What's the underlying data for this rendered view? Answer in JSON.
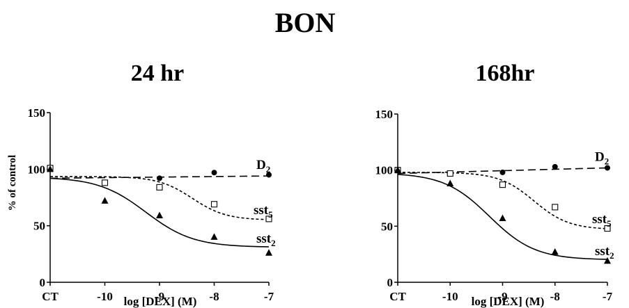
{
  "figure_title": "BON",
  "chart_data": [
    {
      "type": "line",
      "title": "24 hr",
      "xlabel": "log [DEX] (M)",
      "ylabel": "% of control",
      "categories": [
        "CT",
        "-10",
        "-9",
        "-8",
        "-7"
      ],
      "x_positions": [
        -11,
        -10,
        -9,
        -8,
        -7
      ],
      "ylim": [
        0,
        150
      ],
      "yticks": [
        0,
        50,
        100,
        150
      ],
      "series": [
        {
          "name": "D2",
          "label_main": "D",
          "label_sub": "2",
          "marker": "filled-circle",
          "line": "long-dash",
          "points": [
            [
              -11,
              100
            ],
            [
              -9,
              92
            ],
            [
              -8,
              97
            ],
            [
              -7,
              95
            ]
          ],
          "fit": {
            "model": "linear",
            "a": 0.5,
            "b": 97.5
          }
        },
        {
          "name": "sst5",
          "label_main": "sst",
          "label_sub": "5",
          "marker": "open-square",
          "line": "short-dash",
          "points": [
            [
              -11,
              101
            ],
            [
              -10,
              88
            ],
            [
              -9,
              84
            ],
            [
              -8,
              69
            ],
            [
              -7,
              56
            ]
          ],
          "fit": {
            "model": "sigmoid",
            "top": 93.5,
            "bottom": 55,
            "logec50": -8.4,
            "hill": 1.4
          }
        },
        {
          "name": "sst2",
          "label_main": "sst",
          "label_sub": "2",
          "marker": "filled-triangle",
          "line": "solid",
          "points": [
            [
              -11,
              100
            ],
            [
              -10,
              72
            ],
            [
              -9,
              59
            ],
            [
              -8,
              40
            ],
            [
              -7,
              26
            ]
          ],
          "fit": {
            "model": "sigmoid",
            "top": 93,
            "bottom": 31,
            "logec50": -9.25,
            "hill": 1.0
          }
        }
      ]
    },
    {
      "type": "line",
      "title": "168hr",
      "xlabel": "log [DEX] (M)",
      "ylabel": "",
      "categories": [
        "CT",
        "-10",
        "-9",
        "-8",
        "-7"
      ],
      "x_positions": [
        -11,
        -10,
        -9,
        -8,
        -7
      ],
      "ylim": [
        0,
        150
      ],
      "yticks": [
        0,
        50,
        100,
        150
      ],
      "series": [
        {
          "name": "D2",
          "label_main": "D",
          "label_sub": "2",
          "marker": "filled-circle",
          "line": "long-dash",
          "points": [
            [
              -11,
              100
            ],
            [
              -9,
              98
            ],
            [
              -8,
              103
            ],
            [
              -7,
              102
            ]
          ],
          "fit": {
            "model": "linear",
            "a": 1.25,
            "b": 110.75
          }
        },
        {
          "name": "sst5",
          "label_main": "sst",
          "label_sub": "5",
          "marker": "open-square",
          "line": "short-dash",
          "points": [
            [
              -11,
              100
            ],
            [
              -10,
              97
            ],
            [
              -9,
              87
            ],
            [
              -8,
              67
            ],
            [
              -7,
              48
            ]
          ],
          "fit": {
            "model": "sigmoid",
            "top": 98,
            "bottom": 47,
            "logec50": -8.4,
            "hill": 1.3
          }
        },
        {
          "name": "sst2",
          "label_main": "sst",
          "label_sub": "2",
          "marker": "filled-triangle",
          "line": "solid",
          "points": [
            [
              -11,
              100
            ],
            [
              -10,
              88
            ],
            [
              -9,
              57
            ],
            [
              -8,
              27
            ],
            [
              -7,
              19
            ]
          ],
          "fit": {
            "model": "sigmoid",
            "top": 97.5,
            "bottom": 20,
            "logec50": -9.25,
            "hill": 1.0
          }
        }
      ]
    }
  ]
}
